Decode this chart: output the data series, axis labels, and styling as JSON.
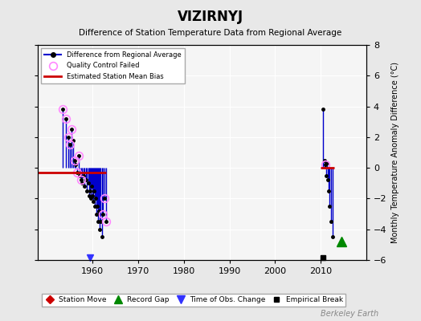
{
  "title": "VIZIRNYJ",
  "subtitle": "Difference of Station Temperature Data from Regional Average",
  "ylabel_right": "Monthly Temperature Anomaly Difference (°C)",
  "ylim": [
    -6,
    8
  ],
  "xlim": [
    1948,
    2020
  ],
  "yticks": [
    -6,
    -4,
    -2,
    0,
    2,
    4,
    6,
    8
  ],
  "xticks": [
    1960,
    1970,
    1980,
    1990,
    2000,
    2010
  ],
  "background_color": "#e8e8e8",
  "plot_bg_color": "#f5f5f5",
  "grid_color": "#ffffff",
  "line_color": "#0000cc",
  "bias_color": "#cc0000",
  "qc_color": "#ff88ff",
  "watermark": "Berkeley Earth",
  "data_points": [
    {
      "year": 1953.5,
      "val": 3.8,
      "qc": true
    },
    {
      "year": 1954.2,
      "val": 3.2,
      "qc": true
    },
    {
      "year": 1954.7,
      "val": 2.0,
      "qc": true
    },
    {
      "year": 1955.0,
      "val": 1.5,
      "qc": true
    },
    {
      "year": 1955.4,
      "val": 2.5,
      "qc": true
    },
    {
      "year": 1955.8,
      "val": 1.8,
      "qc": false
    },
    {
      "year": 1956.0,
      "val": 0.5,
      "qc": true
    },
    {
      "year": 1956.3,
      "val": 0.2,
      "qc": false
    },
    {
      "year": 1956.6,
      "val": -0.3,
      "qc": true
    },
    {
      "year": 1956.9,
      "val": 0.8,
      "qc": true
    },
    {
      "year": 1957.1,
      "val": -0.5,
      "qc": false
    },
    {
      "year": 1957.4,
      "val": -0.8,
      "qc": true
    },
    {
      "year": 1957.7,
      "val": -1.0,
      "qc": false
    },
    {
      "year": 1958.0,
      "val": -0.5,
      "qc": false
    },
    {
      "year": 1958.2,
      "val": -1.2,
      "qc": false
    },
    {
      "year": 1958.5,
      "val": -0.8,
      "qc": false
    },
    {
      "year": 1958.7,
      "val": -1.5,
      "qc": false
    },
    {
      "year": 1959.0,
      "val": -1.0,
      "qc": false
    },
    {
      "year": 1959.2,
      "val": -1.8,
      "qc": false
    },
    {
      "year": 1959.4,
      "val": -1.5,
      "qc": false
    },
    {
      "year": 1959.6,
      "val": -2.0,
      "qc": false
    },
    {
      "year": 1959.8,
      "val": -1.2,
      "qc": false
    },
    {
      "year": 1960.0,
      "val": -1.8,
      "qc": false
    },
    {
      "year": 1960.2,
      "val": -2.2,
      "qc": false
    },
    {
      "year": 1960.35,
      "val": -1.5,
      "qc": false
    },
    {
      "year": 1960.5,
      "val": -2.5,
      "qc": false
    },
    {
      "year": 1960.65,
      "val": -2.0,
      "qc": false
    },
    {
      "year": 1960.8,
      "val": -3.0,
      "qc": false
    },
    {
      "year": 1961.0,
      "val": -2.5,
      "qc": false
    },
    {
      "year": 1961.2,
      "val": -3.5,
      "qc": false
    },
    {
      "year": 1961.4,
      "val": -2.8,
      "qc": false
    },
    {
      "year": 1961.6,
      "val": -4.0,
      "qc": false
    },
    {
      "year": 1961.8,
      "val": -3.5,
      "qc": false
    },
    {
      "year": 1962.0,
      "val": -4.5,
      "qc": false
    },
    {
      "year": 1962.3,
      "val": -3.0,
      "qc": true
    },
    {
      "year": 1962.6,
      "val": -2.0,
      "qc": true
    },
    {
      "year": 1962.9,
      "val": -3.5,
      "qc": true
    },
    {
      "year": 2010.5,
      "val": 3.8,
      "qc": false
    },
    {
      "year": 2010.8,
      "val": 0.5,
      "qc": false
    },
    {
      "year": 2011.0,
      "val": 0.2,
      "qc": true
    },
    {
      "year": 2011.2,
      "val": -0.5,
      "qc": false
    },
    {
      "year": 2011.4,
      "val": 0.3,
      "qc": false
    },
    {
      "year": 2011.6,
      "val": -0.8,
      "qc": false
    },
    {
      "year": 2011.8,
      "val": -1.5,
      "qc": false
    },
    {
      "year": 2012.0,
      "val": -2.5,
      "qc": false
    },
    {
      "year": 2012.3,
      "val": -3.5,
      "qc": false
    },
    {
      "year": 2012.6,
      "val": -4.5,
      "qc": false
    }
  ],
  "bias_segments": [
    {
      "x_start": 1948,
      "x_end": 1963,
      "y": -0.3
    },
    {
      "x_start": 2010,
      "x_end": 2013,
      "y": 0.0
    }
  ],
  "time_of_obs_markers": [
    {
      "year": 1959.5
    }
  ],
  "empirical_break_markers": [
    {
      "year": 2010.5
    }
  ],
  "record_gap_markers": [
    {
      "year": 2014.5
    }
  ],
  "station_move_markers": []
}
